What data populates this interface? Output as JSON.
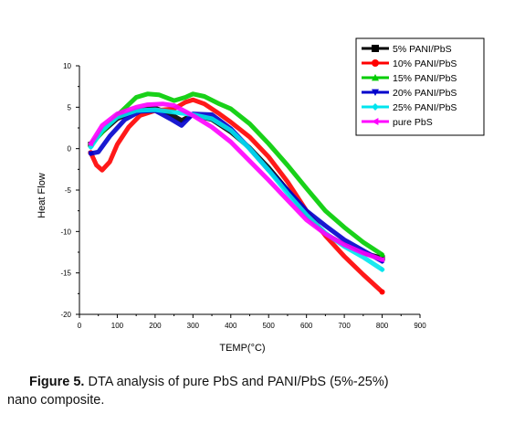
{
  "chart_data": {
    "type": "line",
    "xlabel": "TEMP(°C)",
    "ylabel": "Heat Flow",
    "xlim": [
      0,
      900
    ],
    "ylim": [
      -20,
      10
    ],
    "xticks": [
      0,
      100,
      200,
      300,
      400,
      500,
      600,
      700,
      800,
      900
    ],
    "yticks": [
      10,
      5,
      0,
      -5,
      -10,
      -15,
      -20
    ],
    "grid": false,
    "legend_position": "top-right",
    "series": [
      {
        "name": "5% PANI/PbS",
        "color": "#000000",
        "marker": "square",
        "x": [
          30,
          60,
          100,
          150,
          200,
          240,
          270,
          300,
          350,
          400,
          450,
          500,
          550,
          600,
          650,
          700,
          750,
          800
        ],
        "y": [
          0.5,
          2,
          3.6,
          4.6,
          4.9,
          4.2,
          3.4,
          4.1,
          3.5,
          2.0,
          0.1,
          -2.3,
          -5.0,
          -8.0,
          -10.3,
          -11.6,
          -12.6,
          -13.2
        ]
      },
      {
        "name": "10% PANI/PbS",
        "color": "#ff0000",
        "marker": "circle",
        "x": [
          30,
          45,
          60,
          80,
          100,
          130,
          160,
          200,
          250,
          280,
          300,
          330,
          370,
          400,
          450,
          500,
          550,
          600,
          650,
          700,
          750,
          800
        ],
        "y": [
          -0.5,
          -2,
          -2.6,
          -1.6,
          0.5,
          2.6,
          4,
          4.6,
          4.8,
          5.6,
          5.9,
          5.4,
          4.2,
          3.2,
          1.4,
          -1.0,
          -4.0,
          -7.5,
          -10.5,
          -13.0,
          -15.2,
          -17.3
        ]
      },
      {
        "name": "15% PANI/PbS",
        "color": "#00cc00",
        "marker": "triangle-up",
        "x": [
          30,
          60,
          100,
          150,
          180,
          210,
          250,
          280,
          300,
          330,
          370,
          400,
          450,
          500,
          550,
          600,
          650,
          700,
          750,
          800
        ],
        "y": [
          0.5,
          2,
          4,
          6.2,
          6.6,
          6.5,
          5.8,
          6.2,
          6.6,
          6.3,
          5.4,
          4.8,
          3.0,
          0.6,
          -2.0,
          -4.8,
          -7.5,
          -9.5,
          -11.3,
          -12.8
        ]
      },
      {
        "name": "20% PANI/PbS",
        "color": "#0000cc",
        "marker": "triangle-down",
        "x": [
          30,
          50,
          80,
          120,
          160,
          200,
          240,
          270,
          300,
          350,
          400,
          450,
          500,
          550,
          600,
          650,
          700,
          750,
          800
        ],
        "y": [
          -0.6,
          -0.4,
          1.5,
          3.5,
          4.5,
          4.6,
          3.6,
          2.8,
          4.2,
          4.1,
          2.4,
          0.0,
          -2.6,
          -5.0,
          -7.5,
          -9.3,
          -11.0,
          -12.3,
          -13.6
        ]
      },
      {
        "name": "25% PANI/PbS",
        "color": "#00e5ee",
        "marker": "diamond",
        "x": [
          30,
          60,
          100,
          150,
          200,
          250,
          300,
          350,
          400,
          450,
          500,
          550,
          600,
          650,
          700,
          750,
          800
        ],
        "y": [
          0.2,
          2.2,
          3.8,
          4.6,
          4.7,
          4.4,
          4.1,
          3.6,
          2.2,
          0.0,
          -2.6,
          -5.4,
          -8.0,
          -10.2,
          -11.8,
          -13.1,
          -14.6
        ]
      },
      {
        "name": "pure PbS",
        "color": "#ff00ff",
        "marker": "triangle-left",
        "x": [
          30,
          60,
          100,
          150,
          180,
          220,
          250,
          300,
          350,
          400,
          450,
          500,
          550,
          600,
          650,
          700,
          750,
          800
        ],
        "y": [
          0.6,
          2.8,
          4.2,
          5.0,
          5.3,
          5.4,
          5.2,
          4.0,
          2.6,
          0.8,
          -1.5,
          -3.8,
          -6.2,
          -8.6,
          -10.3,
          -11.6,
          -12.6,
          -13.4
        ]
      }
    ]
  },
  "caption": {
    "label": "Figure 5.",
    "line1": "DTA analysis of pure PbS and PANI/PbS (5%-25%)",
    "line2": "nano composite."
  }
}
